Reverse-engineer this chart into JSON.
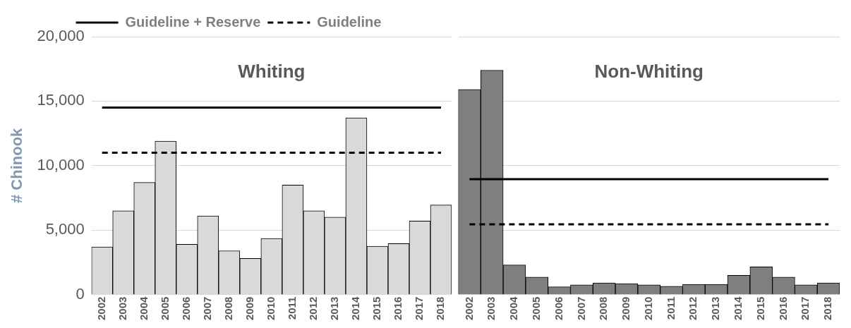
{
  "chart_data": [
    {
      "type": "bar",
      "title": "Whiting",
      "ylabel": "# Chinook",
      "categories": [
        "2002",
        "2003",
        "2004",
        "2005",
        "2006",
        "2007",
        "2008",
        "2009",
        "2010",
        "2011",
        "2012",
        "2013",
        "2014",
        "2015",
        "2016",
        "2017",
        "2018"
      ],
      "series": [
        {
          "color": "#d9d9d9",
          "values": [
            3700,
            6500,
            8700,
            11900,
            3900,
            6100,
            3400,
            2800,
            4350,
            8500,
            6500,
            6000,
            13700,
            3750,
            3950,
            5700,
            6950
          ]
        },
        {
          "type": "line",
          "name": "Guideline + Reserve",
          "color": "#000000",
          "line_style": "solid",
          "values": [
            14500,
            14500,
            14500,
            14500,
            14500,
            14500,
            14500,
            14500,
            14500,
            14500,
            14500,
            14500,
            14500,
            14500,
            14500,
            14500,
            14500
          ]
        },
        {
          "type": "line",
          "name": "Guideline",
          "color": "#000000",
          "line_style": "dashed",
          "values": [
            11000,
            11000,
            11000,
            11000,
            11000,
            11000,
            11000,
            11000,
            11000,
            11000,
            11000,
            11000,
            11000,
            11000,
            11000,
            11000,
            11000
          ]
        }
      ],
      "ylim": [
        0,
        20000
      ],
      "yticks": [
        0,
        {
          "value": 5000,
          "label": "5,000"
        },
        {
          "value": 10000,
          "label": "10,000"
        },
        {
          "value": 15000,
          "label": "15,000"
        },
        {
          "value": 20000,
          "label": "20,000"
        }
      ],
      "grid": "y",
      "legend": "top"
    },
    {
      "type": "bar",
      "title": "Non-Whiting",
      "categories": [
        "2002",
        "2003",
        "2004",
        "2005",
        "2006",
        "2007",
        "2008",
        "2009",
        "2010",
        "2011",
        "2012",
        "2013",
        "2014",
        "2015",
        "2016",
        "2017",
        "2018"
      ],
      "series": [
        {
          "color": "#7f7f7f",
          "values": [
            15900,
            17400,
            2300,
            1350,
            600,
            750,
            900,
            850,
            750,
            650,
            800,
            800,
            1500,
            2150,
            1350,
            750,
            900
          ]
        },
        {
          "type": "line",
          "color": "#000000",
          "line_style": "solid",
          "values": [
            8950,
            8950,
            8950,
            8950,
            8950,
            8950,
            8950,
            8950,
            8950,
            8950,
            8950,
            8950,
            8950,
            8950,
            8950,
            8950,
            8950
          ]
        },
        {
          "type": "line",
          "color": "#000000",
          "line_style": "dashed",
          "values": [
            5450,
            5450,
            5450,
            5450,
            5450,
            5450,
            5450,
            5450,
            5450,
            5450,
            5450,
            5450,
            5450,
            5450,
            5450,
            5450,
            5450
          ]
        }
      ],
      "ylim": [
        0,
        20000
      ],
      "yticks": [
        0,
        5000,
        10000,
        15000,
        20000
      ],
      "grid": "y",
      "tick_labels": "x"
    }
  ]
}
